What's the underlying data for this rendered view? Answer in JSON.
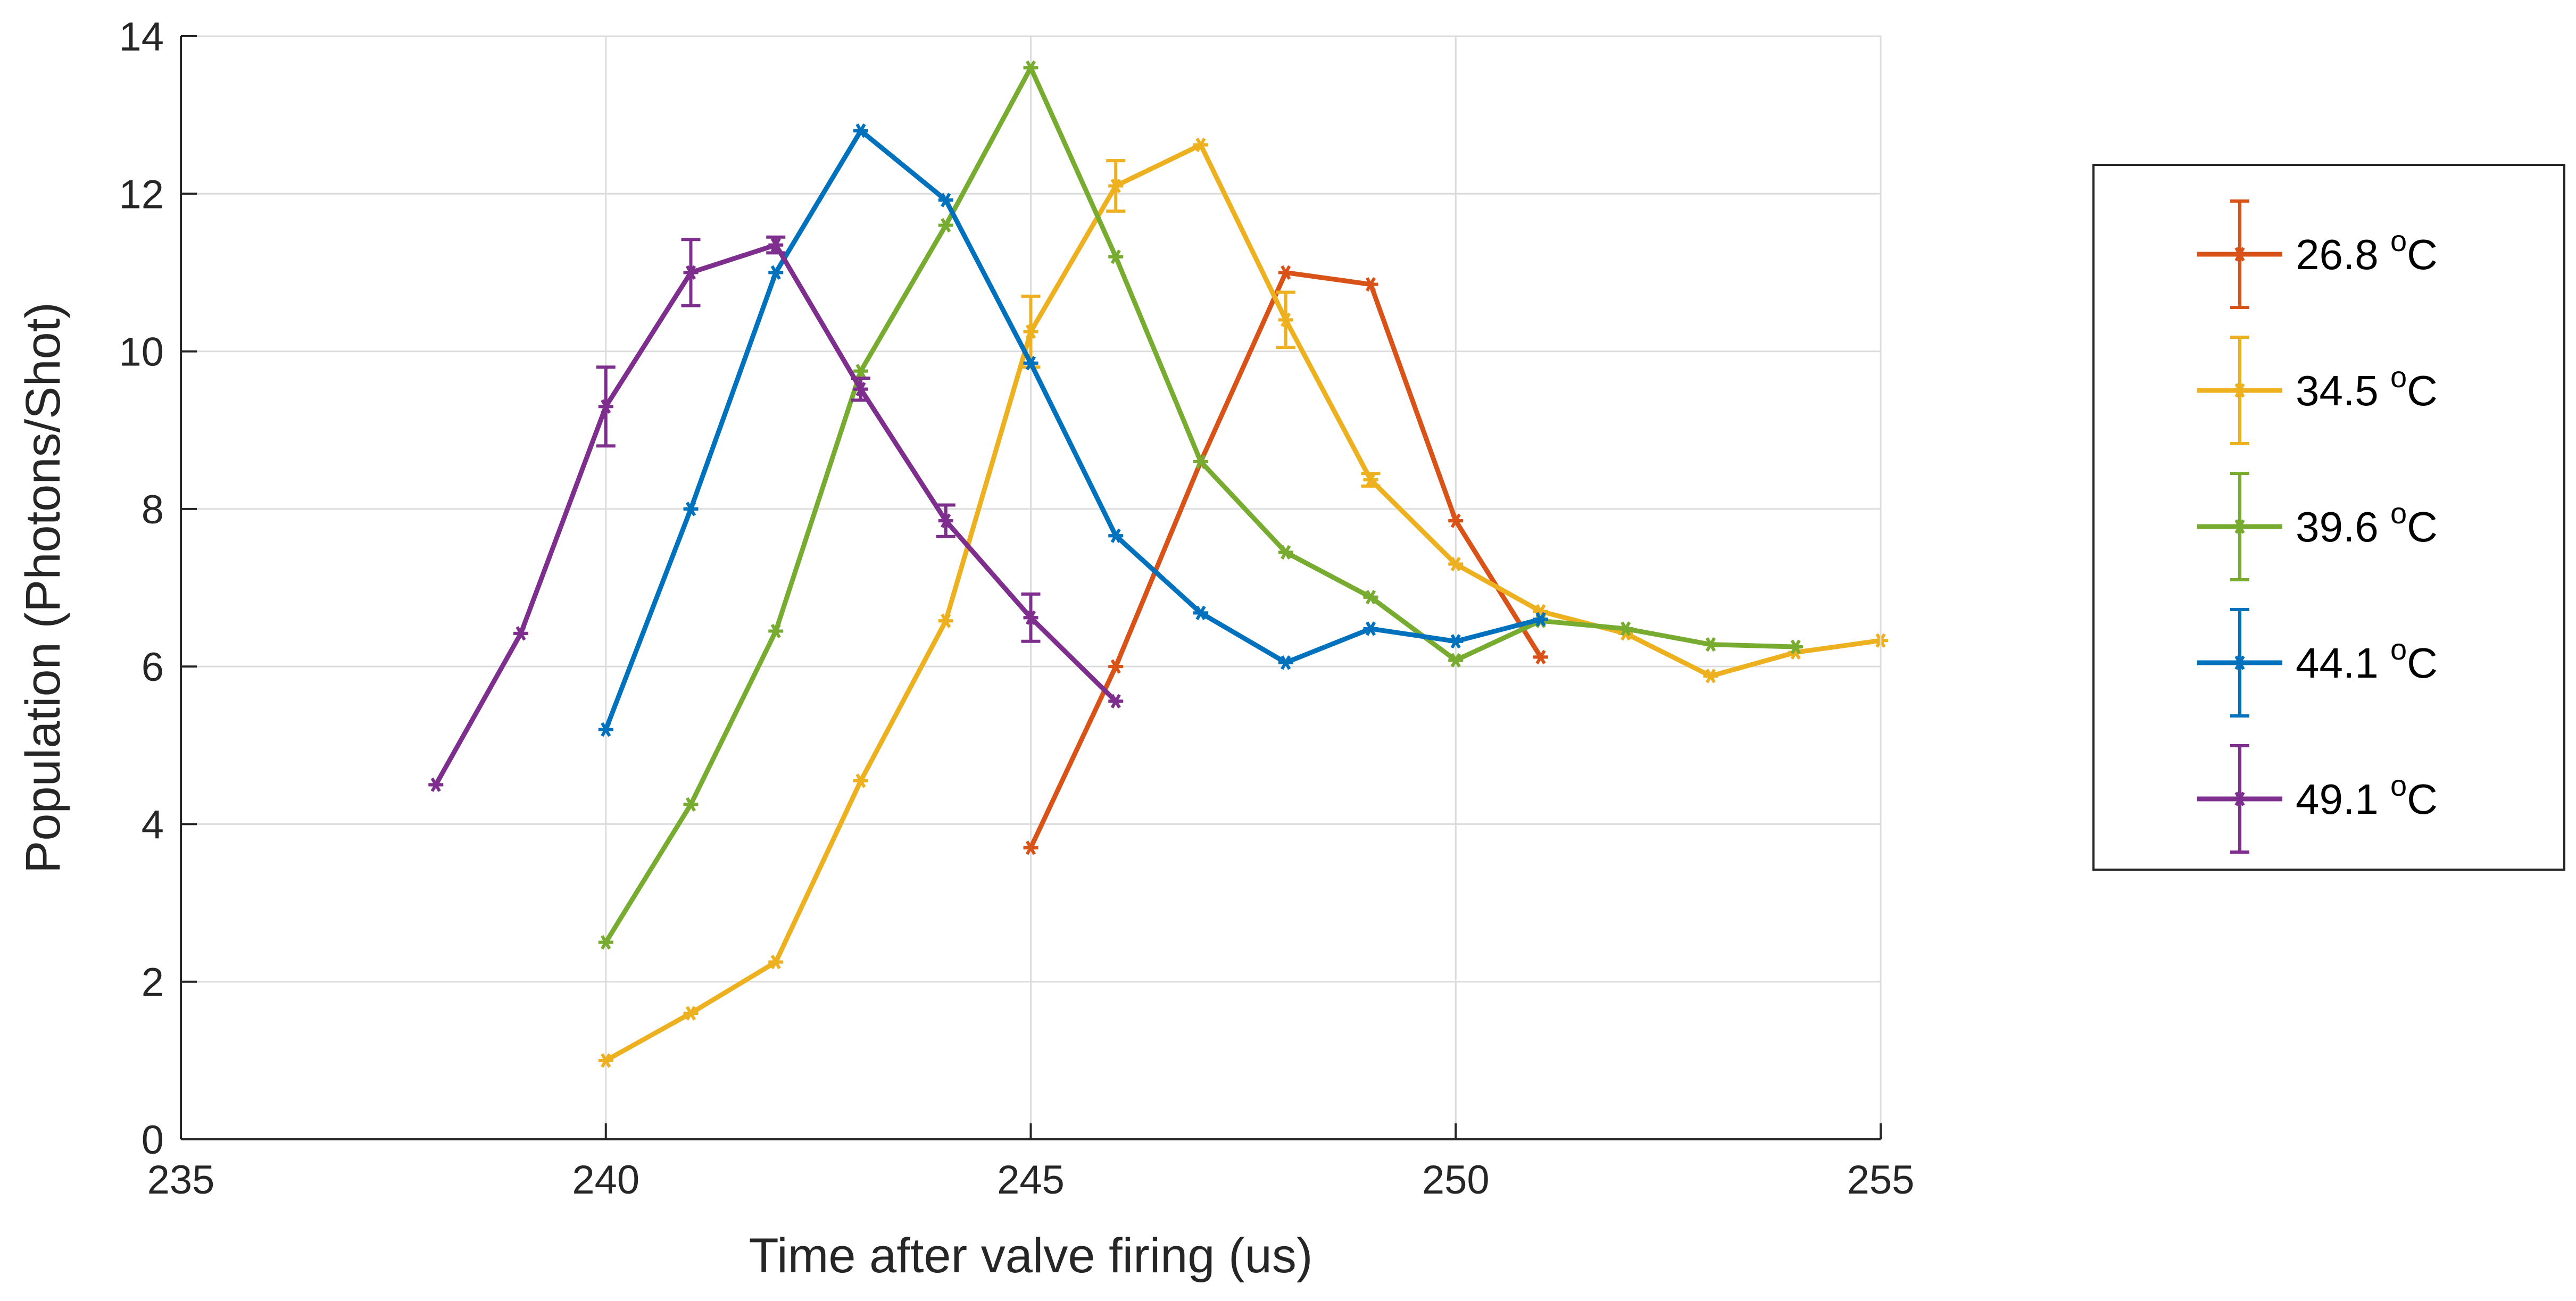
{
  "chart_data": {
    "type": "line",
    "title": "",
    "xlabel": "Time after valve firing (us)",
    "ylabel": "Population (Photons/Shot)",
    "xlim": [
      235,
      255
    ],
    "ylim": [
      0,
      14
    ],
    "xticks": [
      235,
      240,
      245,
      250,
      255
    ],
    "yticks": [
      0,
      2,
      4,
      6,
      8,
      10,
      12,
      14
    ],
    "grid": true,
    "legend_position": "right",
    "marker": "asterisk",
    "series": [
      {
        "name": "26.8",
        "unit": "oC",
        "color": "#D95319",
        "x": [
          245,
          246,
          247,
          248,
          249,
          250,
          251
        ],
        "y": [
          3.7,
          6.0,
          8.6,
          11.0,
          10.85,
          7.85,
          6.12
        ],
        "err": [
          0,
          0,
          0,
          0,
          0,
          0,
          0
        ]
      },
      {
        "name": "34.5",
        "unit": "oC",
        "color": "#EDB120",
        "x": [
          240,
          241,
          242,
          243,
          244,
          245,
          246,
          247,
          248,
          249,
          250,
          251,
          252,
          253,
          254,
          255
        ],
        "y": [
          1.0,
          1.6,
          2.25,
          4.55,
          6.58,
          10.25,
          12.1,
          12.62,
          10.4,
          8.37,
          7.3,
          6.7,
          6.42,
          5.88,
          6.18,
          6.33
        ],
        "err": [
          0,
          0,
          0,
          0,
          0,
          0.45,
          0.32,
          0,
          0.35,
          0.08,
          0,
          0,
          0,
          0,
          0,
          0
        ]
      },
      {
        "name": "39.6",
        "unit": "oC",
        "color": "#77AC30",
        "x": [
          240,
          241,
          242,
          243,
          244,
          245,
          246,
          247,
          248,
          249,
          250,
          251,
          252,
          253,
          254
        ],
        "y": [
          2.5,
          4.25,
          6.45,
          9.75,
          11.6,
          13.6,
          11.2,
          8.6,
          7.45,
          6.88,
          6.08,
          6.58,
          6.48,
          6.28,
          6.25
        ],
        "err": [
          0,
          0,
          0,
          0,
          0,
          0,
          0,
          0,
          0,
          0,
          0,
          0,
          0,
          0,
          0
        ]
      },
      {
        "name": "44.1",
        "unit": "oC",
        "color": "#0072BD",
        "x": [
          240,
          241,
          242,
          243,
          244,
          245,
          246,
          247,
          248,
          249,
          250,
          251
        ],
        "y": [
          5.2,
          8.0,
          11.0,
          12.8,
          11.92,
          9.85,
          7.66,
          6.68,
          6.05,
          6.48,
          6.32,
          6.6
        ],
        "err": [
          0,
          0,
          0,
          0,
          0,
          0,
          0,
          0,
          0,
          0,
          0,
          0
        ]
      },
      {
        "name": "49.1",
        "unit": "oC",
        "color": "#7E2F8E",
        "x": [
          238,
          239,
          240,
          241,
          242,
          243,
          244,
          245,
          246
        ],
        "y": [
          4.5,
          6.42,
          9.3,
          11.0,
          11.35,
          9.52,
          7.85,
          6.62,
          5.56
        ],
        "err": [
          0,
          0,
          0.5,
          0.42,
          0.1,
          0.14,
          0.2,
          0.3,
          0
        ]
      }
    ]
  }
}
